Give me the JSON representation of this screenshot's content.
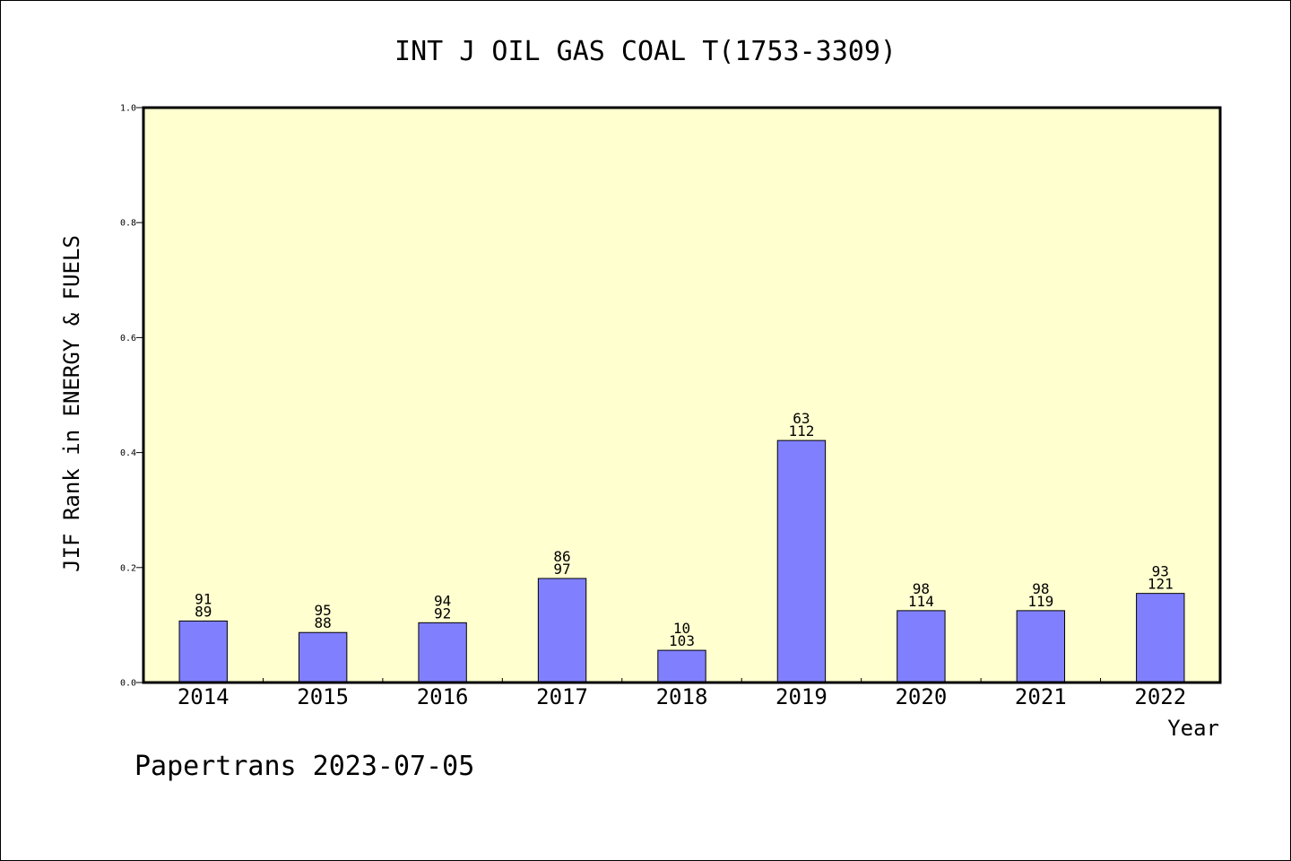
{
  "chart_data": {
    "type": "bar",
    "title": "INT J OIL GAS COAL T(1753-3309)",
    "xlabel": "Year",
    "ylabel": "JIF Rank in ENERGY & FUELS",
    "ylim": [
      0,
      1.0
    ],
    "yticks": [
      "0.0",
      "0.2",
      "0.4",
      "0.6",
      "0.8",
      "1.0"
    ],
    "categories": [
      "2014",
      "2015",
      "2016",
      "2017",
      "2018",
      "2019",
      "2020",
      "2021",
      "2022"
    ],
    "values": [
      0.107,
      0.087,
      0.104,
      0.181,
      0.056,
      0.421,
      0.125,
      0.125,
      0.155
    ],
    "labels_top": [
      "91",
      "95",
      "94",
      "86",
      "10",
      "63",
      "98",
      "98",
      "93"
    ],
    "labels_bottom": [
      "89",
      "88",
      "92",
      "97",
      "103",
      "112",
      "114",
      "119",
      "121"
    ],
    "grid": false,
    "colors": {
      "bar": "#8080ff",
      "plot_bg": "#ffffd0",
      "axis": "#000000"
    }
  },
  "footer": "Papertrans 2023-07-05"
}
